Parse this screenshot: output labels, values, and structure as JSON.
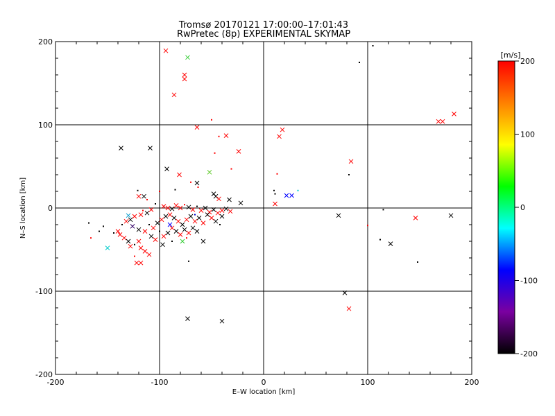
{
  "chart_data": {
    "type": "scatter",
    "title": "Tromsø 20170121 17:00:00–17:01:43",
    "subtitle": "RwPretec (8p) EXPERIMENTAL SKYMAP",
    "xlabel": "E–W location [km]",
    "ylabel": "N–S location [km]",
    "xlim": [
      -200,
      200
    ],
    "ylim": [
      -200,
      200
    ],
    "xticks": [
      -200,
      -100,
      0,
      100,
      200
    ],
    "yticks": [
      -200,
      -100,
      0,
      100,
      200
    ],
    "grid": true,
    "colorbar": {
      "label": "[m/s]",
      "range": [
        -200,
        200
      ],
      "ticks": [
        -200,
        -100,
        0,
        100,
        200
      ],
      "colors": [
        "#000000",
        "#7a00a0",
        "#0000ff",
        "#00ffff",
        "#00ff00",
        "#ffff00",
        "#ff8000",
        "#ff0000"
      ]
    },
    "points": [
      [
        -94,
        189,
        "#ff0000",
        "x"
      ],
      [
        -73,
        181,
        "#33cc33",
        "x"
      ],
      [
        -76,
        160,
        "#ff0000",
        "x"
      ],
      [
        -76,
        155,
        "#ff0000",
        "x"
      ],
      [
        -86,
        136,
        "#ff0000",
        "x"
      ],
      [
        -50,
        106,
        "#ff0000",
        "dot"
      ],
      [
        -64,
        97,
        "#ff0000",
        "x"
      ],
      [
        -36,
        87,
        "#ff0000",
        "x"
      ],
      [
        -43,
        86,
        "#ff0000",
        "dot"
      ],
      [
        -137,
        72,
        "#000000",
        "x"
      ],
      [
        -109,
        72,
        "#000000",
        "x"
      ],
      [
        -24,
        68,
        "#ff0000",
        "x"
      ],
      [
        -47,
        66,
        "#ff0000",
        "dot"
      ],
      [
        -93,
        47,
        "#000000",
        "x"
      ],
      [
        -31,
        47,
        "#ff0000",
        "dot"
      ],
      [
        -52,
        43,
        "#66cc33",
        "x"
      ],
      [
        -81,
        40,
        "#ff0000",
        "x"
      ],
      [
        -70,
        31,
        "#ff0000",
        "dot"
      ],
      [
        -64,
        30,
        "#000000",
        "x"
      ],
      [
        -63,
        25,
        "#ff0000",
        "dot"
      ],
      [
        -85,
        22,
        "#000000",
        "dot"
      ],
      [
        -121,
        21,
        "#000000",
        "dot"
      ],
      [
        -100,
        20,
        "#ff0000",
        "dot"
      ],
      [
        -48,
        17,
        "#000000",
        "x"
      ],
      [
        -46,
        14,
        "#000000",
        "x"
      ],
      [
        -43,
        11,
        "#ff0000",
        "x"
      ],
      [
        -33,
        10,
        "#000000",
        "x"
      ],
      [
        -22,
        6,
        "#000000",
        "x"
      ],
      [
        -115,
        14,
        "#000000",
        "x"
      ],
      [
        -120,
        14,
        "#ff0000",
        "x"
      ],
      [
        -112,
        10,
        "#ff0000",
        "dot"
      ],
      [
        -104,
        5,
        "#000000",
        "dot"
      ],
      [
        -96,
        2,
        "#ff0000",
        "x"
      ],
      [
        -92,
        0,
        "#ff0000",
        "x"
      ],
      [
        -88,
        -1,
        "#000000",
        "x"
      ],
      [
        -84,
        3,
        "#ff0000",
        "x"
      ],
      [
        -80,
        0,
        "#ff0000",
        "x"
      ],
      [
        -76,
        4,
        "#ff0000",
        "dot"
      ],
      [
        -72,
        1,
        "#000000",
        "x"
      ],
      [
        -68,
        -2,
        "#ff0000",
        "x"
      ],
      [
        -64,
        2,
        "#000000",
        "dot"
      ],
      [
        -60,
        -3,
        "#ff0000",
        "x"
      ],
      [
        -56,
        0,
        "#000000",
        "x"
      ],
      [
        -52,
        -5,
        "#ff0000",
        "x"
      ],
      [
        -48,
        -2,
        "#000000",
        "x"
      ],
      [
        -44,
        -6,
        "#ff0000",
        "x"
      ],
      [
        -40,
        -3,
        "#ff0000",
        "x"
      ],
      [
        -36,
        -1,
        "#000000",
        "x"
      ],
      [
        -32,
        -4,
        "#ff0000",
        "x"
      ],
      [
        -108,
        -2,
        "#ff0000",
        "x"
      ],
      [
        -112,
        -6,
        "#000000",
        "x"
      ],
      [
        -116,
        -3,
        "#ff0000",
        "dot"
      ],
      [
        -118,
        -8,
        "#ff0000",
        "x"
      ],
      [
        -124,
        -10,
        "#ff0000",
        "x"
      ],
      [
        -128,
        -14,
        "#000000",
        "x"
      ],
      [
        -130,
        -9,
        "#0099cc",
        "x"
      ],
      [
        -132,
        -16,
        "#ff0000",
        "x"
      ],
      [
        -136,
        -20,
        "#000000",
        "dot"
      ],
      [
        -140,
        -28,
        "#ff0000",
        "x"
      ],
      [
        -138,
        -32,
        "#ff0000",
        "x"
      ],
      [
        -134,
        -36,
        "#ff0000",
        "x"
      ],
      [
        -130,
        -40,
        "#000000",
        "x"
      ],
      [
        -128,
        -46,
        "#ff0000",
        "x"
      ],
      [
        -124,
        -44,
        "#000000",
        "dot"
      ],
      [
        -120,
        -40,
        "#ff0000",
        "x"
      ],
      [
        -118,
        -48,
        "#ff0000",
        "x"
      ],
      [
        -114,
        -52,
        "#ff0000",
        "x"
      ],
      [
        -110,
        -56,
        "#ff0000",
        "x"
      ],
      [
        -122,
        -66,
        "#ff0000",
        "x"
      ],
      [
        -118,
        -66,
        "#ff0000",
        "x"
      ],
      [
        -124,
        -58,
        "#ff0000",
        "dot"
      ],
      [
        -150,
        -48,
        "#00cccc",
        "x"
      ],
      [
        -166,
        -36,
        "#ff0000",
        "dot"
      ],
      [
        -158,
        -28,
        "#000000",
        "dot"
      ],
      [
        -168,
        -18,
        "#000000",
        "dot"
      ],
      [
        -154,
        -22,
        "#000000",
        "dot"
      ],
      [
        -144,
        -30,
        "#000000",
        "dot"
      ],
      [
        -126,
        -22,
        "#330066",
        "x"
      ],
      [
        -120,
        -26,
        "#000000",
        "x"
      ],
      [
        -114,
        -28,
        "#ff0000",
        "x"
      ],
      [
        -110,
        -20,
        "#000000",
        "dot"
      ],
      [
        -106,
        -24,
        "#ff0000",
        "x"
      ],
      [
        -102,
        -18,
        "#000000",
        "x"
      ],
      [
        -98,
        -14,
        "#ff0000",
        "x"
      ],
      [
        -94,
        -10,
        "#000000",
        "x"
      ],
      [
        -90,
        -8,
        "#ff0000",
        "x"
      ],
      [
        -86,
        -12,
        "#000000",
        "x"
      ],
      [
        -82,
        -16,
        "#ff0000",
        "x"
      ],
      [
        -78,
        -20,
        "#000000",
        "x"
      ],
      [
        -74,
        -14,
        "#ff0000",
        "x"
      ],
      [
        -70,
        -10,
        "#000000",
        "x"
      ],
      [
        -66,
        -16,
        "#ff0000",
        "x"
      ],
      [
        -62,
        -12,
        "#000000",
        "x"
      ],
      [
        -58,
        -18,
        "#ff0000",
        "x"
      ],
      [
        -54,
        -8,
        "#000000",
        "x"
      ],
      [
        -50,
        -12,
        "#ff0000",
        "x"
      ],
      [
        -46,
        -16,
        "#000000",
        "x"
      ],
      [
        -88,
        -24,
        "#ff0000",
        "x"
      ],
      [
        -84,
        -28,
        "#000000",
        "x"
      ],
      [
        -80,
        -32,
        "#ff0000",
        "x"
      ],
      [
        -76,
        -26,
        "#000000",
        "x"
      ],
      [
        -72,
        -30,
        "#ff0000",
        "x"
      ],
      [
        -68,
        -24,
        "#000000",
        "x"
      ],
      [
        -64,
        -28,
        "#000000",
        "x"
      ],
      [
        -92,
        -30,
        "#000000",
        "x"
      ],
      [
        -96,
        -34,
        "#ff0000",
        "x"
      ],
      [
        -100,
        -28,
        "#000000",
        "dot"
      ],
      [
        -104,
        -38,
        "#ff0000",
        "x"
      ],
      [
        -108,
        -34,
        "#000000",
        "x"
      ],
      [
        -78,
        -40,
        "#33cc33",
        "x"
      ],
      [
        -74,
        -36,
        "#ff0000",
        "dot"
      ],
      [
        -88,
        -40,
        "#000000",
        "dot"
      ],
      [
        -97,
        -44,
        "#000000",
        "x"
      ],
      [
        -58,
        -40,
        "#000000",
        "x"
      ],
      [
        -72,
        -64,
        "#000000",
        "dot"
      ],
      [
        -90,
        -20,
        "#0000ff",
        "x"
      ],
      [
        -66,
        -8,
        "#0000cc",
        "dot"
      ],
      [
        -40,
        -10,
        "#000000",
        "x"
      ],
      [
        -42,
        -20,
        "#000000",
        "dot"
      ],
      [
        -73,
        -133,
        "#000000",
        "x"
      ],
      [
        -40,
        -136,
        "#000000",
        "x"
      ],
      [
        11,
        5,
        "#ff0000",
        "x"
      ],
      [
        13,
        41,
        "#ff0000",
        "dot"
      ],
      [
        15,
        86,
        "#ff0000",
        "x"
      ],
      [
        18,
        94,
        "#ff0000",
        "x"
      ],
      [
        10,
        21,
        "#000000",
        "dot"
      ],
      [
        11,
        17,
        "#000000",
        "dot"
      ],
      [
        22,
        15,
        "#0000ff",
        "x"
      ],
      [
        27,
        15,
        "#0000ff",
        "x"
      ],
      [
        33,
        21,
        "#00cccc",
        "dot"
      ],
      [
        82,
        40,
        "#000000",
        "dot"
      ],
      [
        84,
        56,
        "#ff0000",
        "x"
      ],
      [
        92,
        175,
        "#000000",
        "dot"
      ],
      [
        105,
        195,
        "#000000",
        "dot"
      ],
      [
        168,
        104,
        "#ff0000",
        "x"
      ],
      [
        172,
        104,
        "#ff0000",
        "x"
      ],
      [
        183,
        113,
        "#ff0000",
        "x"
      ],
      [
        72,
        -9,
        "#000000",
        "x"
      ],
      [
        100,
        -21,
        "#ff0000",
        "dot"
      ],
      [
        112,
        -38,
        "#000000",
        "dot"
      ],
      [
        115,
        -2,
        "#000000",
        "dot"
      ],
      [
        122,
        -43,
        "#000000",
        "x"
      ],
      [
        146,
        -12,
        "#ff0000",
        "x"
      ],
      [
        180,
        -9,
        "#000000",
        "x"
      ],
      [
        148,
        -65,
        "#000000",
        "dot"
      ],
      [
        78,
        -102,
        "#000000",
        "x"
      ],
      [
        82,
        -121,
        "#ff0000",
        "x"
      ]
    ]
  }
}
